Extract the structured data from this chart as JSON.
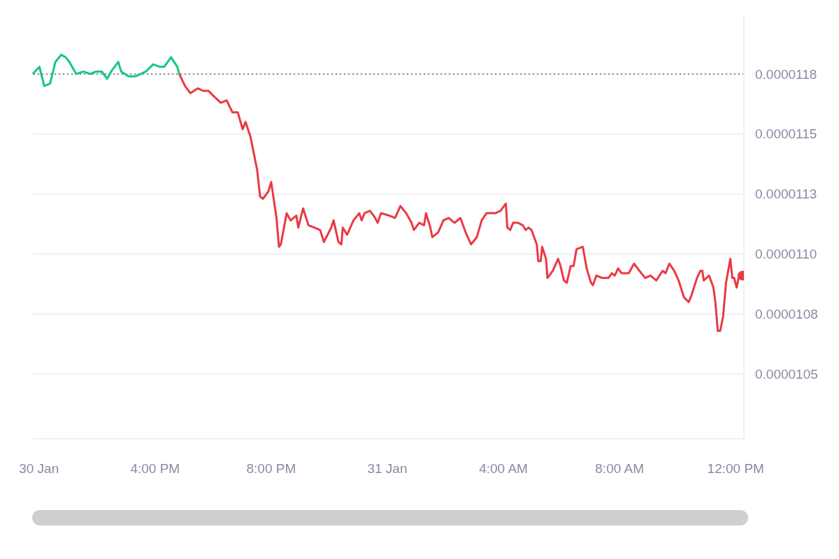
{
  "chart_data": {
    "type": "line",
    "xlim": [
      "--01-30T11:46",
      "--01-31T12:17"
    ],
    "xticks": [
      {
        "value": "--01-30T12:00",
        "label": "30 Jan"
      },
      {
        "value": "--01-30T16:00",
        "label": "4:00 PM"
      },
      {
        "value": "--01-30T20:00",
        "label": "8:00 PM"
      },
      {
        "value": "--01-31T00:00",
        "label": "31 Jan"
      },
      {
        "value": "--01-31T04:00",
        "label": "4:00 AM"
      },
      {
        "value": "--01-31T08:00",
        "label": "8:00 AM"
      },
      {
        "value": "--01-31T12:00",
        "label": "12:00 PM"
      }
    ],
    "ylim": [
      1.028e-05,
      1.205e-05
    ],
    "yticks": [
      {
        "value": 1.18e-05,
        "label": "0.0000118"
      },
      {
        "value": 1.155e-05,
        "label": "0.0000115"
      },
      {
        "value": 1.13e-05,
        "label": "0.0000113"
      },
      {
        "value": 1.105e-05,
        "label": "0.0000110"
      },
      {
        "value": 1.08e-05,
        "label": "0.0000108"
      },
      {
        "value": 1.055e-05,
        "label": "0.0000105"
      }
    ],
    "grid": "y",
    "line_style": "solid",
    "ref_lines": [
      {
        "axis": "y",
        "value": 1.18e-05,
        "color": "#858ca2",
        "line_style": "dotted"
      }
    ],
    "series": [
      {
        "color": "#16c784",
        "x": [
          "--01-30T11:47",
          "--01-30T12:01",
          "--01-30T12:11",
          "--01-30T12:23",
          "--01-30T12:34",
          "--01-30T12:46",
          "--01-30T12:55",
          "--01-30T13:03",
          "--01-30T13:17",
          "--01-30T13:32",
          "--01-30T13:46",
          "--01-30T13:58",
          "--01-30T14:10",
          "--01-30T14:21",
          "--01-30T14:29",
          "--01-30T14:44",
          "--01-30T14:50",
          "--01-30T15:05",
          "--01-30T15:19",
          "--01-30T15:30",
          "--01-30T15:41",
          "--01-30T15:56",
          "--01-30T16:10",
          "--01-30T16:19",
          "--01-30T16:33",
          "--01-30T16:46",
          "--01-30T16:50"
        ],
        "values": [
          1.18e-05,
          1.183e-05,
          1.175e-05,
          1.176e-05,
          1.185e-05,
          1.188e-05,
          1.187e-05,
          1.185e-05,
          1.18e-05,
          1.181e-05,
          1.18e-05,
          1.181e-05,
          1.181e-05,
          1.178e-05,
          1.181e-05,
          1.185e-05,
          1.181e-05,
          1.179e-05,
          1.179e-05,
          1.18e-05,
          1.181e-05,
          1.184e-05,
          1.183e-05,
          1.183e-05,
          1.187e-05,
          1.183e-05,
          1.18e-05
        ]
      },
      {
        "color": "#ea3943",
        "x": [
          "--01-30T16:50",
          "--01-30T17:02",
          "--01-30T17:13",
          "--01-30T17:28",
          "--01-30T17:39",
          "--01-30T17:50",
          "--01-30T18:05",
          "--01-30T18:16",
          "--01-30T18:28",
          "--01-30T18:40",
          "--01-30T18:51",
          "--01-30T19:01",
          "--01-30T19:07",
          "--01-30T19:17",
          "--01-30T19:25",
          "--01-30T19:31",
          "--01-30T19:37",
          "--01-30T19:43",
          "--01-30T19:54",
          "--01-30T20:00",
          "--01-30T20:11",
          "--01-30T20:16",
          "--01-30T20:20",
          "--01-30T20:32",
          "--01-30T20:40",
          "--01-30T20:52",
          "--01-30T20:56",
          "--01-30T21:06",
          "--01-30T21:17",
          "--01-30T21:29",
          "--01-30T21:41",
          "--01-30T21:49",
          "--01-30T22:04",
          "--01-30T22:09",
          "--01-30T22:19",
          "--01-30T22:25",
          "--01-30T22:28",
          "--01-30T22:37",
          "--01-30T22:50",
          "--01-30T23:02",
          "--01-30T23:07",
          "--01-30T23:13",
          "--01-30T23:24",
          "--01-30T23:35",
          "--01-30T23:40",
          "--01-30T23:47",
          "--01-31T00:04",
          "--01-31T00:16",
          "--01-31T00:27",
          "--01-31T00:39",
          "--01-31T00:50",
          "--01-31T00:55",
          "--01-31T01:06",
          "--01-31T01:16",
          "--01-31T01:20",
          "--01-31T01:29",
          "--01-31T01:33",
          "--01-31T01:45",
          "--01-31T01:56",
          "--01-31T02:07",
          "--01-31T02:19",
          "--01-31T02:31",
          "--01-31T02:42",
          "--01-31T02:53",
          "--01-31T03:05",
          "--01-31T03:15",
          "--01-31T03:25",
          "--01-31T03:43",
          "--01-31T03:54",
          "--01-31T04:05",
          "--01-31T04:08",
          "--01-31T04:14",
          "--01-31T04:20",
          "--01-31T04:30",
          "--01-31T04:40",
          "--01-31T04:46",
          "--01-31T04:52",
          "--01-31T04:58",
          "--01-31T05:09",
          "--01-31T05:12",
          "--01-31T05:17",
          "--01-31T05:20",
          "--01-31T05:28",
          "--01-31T05:31",
          "--01-31T05:42",
          "--01-31T05:53",
          "--01-31T05:58",
          "--01-31T06:05",
          "--01-31T06:11",
          "--01-31T06:19",
          "--01-31T06:25",
          "--01-31T06:31",
          "--01-31T06:44",
          "--01-31T06:52",
          "--01-31T07:01",
          "--01-31T07:05",
          "--01-31T07:12",
          "--01-31T07:24",
          "--01-31T07:37",
          "--01-31T07:44",
          "--01-31T07:50",
          "--01-31T07:57",
          "--01-31T08:04",
          "--01-31T08:19",
          "--01-31T08:30",
          "--01-31T08:41",
          "--01-31T08:53",
          "--01-31T09:04",
          "--01-31T09:16",
          "--01-31T09:29",
          "--01-31T09:35",
          "--01-31T09:43",
          "--01-31T09:53",
          "--01-31T10:02",
          "--01-31T10:13",
          "--01-31T10:23",
          "--01-31T10:29",
          "--01-31T10:40",
          "--01-31T10:47",
          "--01-31T10:51",
          "--01-31T10:54",
          "--01-31T11:05",
          "--01-31T11:14",
          "--01-31T11:18",
          "--01-31T11:23",
          "--01-31T11:28",
          "--01-31T11:34",
          "--01-31T11:40",
          "--01-31T11:49",
          "--01-31T11:53",
          "--01-31T11:57",
          "--01-31T12:02",
          "--01-31T12:07",
          "--01-31T12:14"
        ],
        "values": [
          1.18e-05,
          1.175e-05,
          1.172e-05,
          1.174e-05,
          1.173e-05,
          1.173e-05,
          1.17e-05,
          1.168e-05,
          1.169e-05,
          1.164e-05,
          1.164e-05,
          1.157e-05,
          1.16e-05,
          1.154e-05,
          1.146e-05,
          1.14e-05,
          1.129e-05,
          1.128e-05,
          1.131e-05,
          1.135e-05,
          1.12e-05,
          1.108e-05,
          1.109e-05,
          1.122e-05,
          1.119e-05,
          1.121e-05,
          1.116e-05,
          1.124e-05,
          1.117e-05,
          1.116e-05,
          1.115e-05,
          1.11e-05,
          1.116e-05,
          1.119e-05,
          1.11e-05,
          1.109e-05,
          1.116e-05,
          1.113e-05,
          1.119e-05,
          1.122e-05,
          1.119e-05,
          1.122e-05,
          1.123e-05,
          1.12e-05,
          1.118e-05,
          1.122e-05,
          1.121e-05,
          1.12e-05,
          1.125e-05,
          1.122e-05,
          1.118e-05,
          1.115e-05,
          1.118e-05,
          1.117e-05,
          1.122e-05,
          1.116e-05,
          1.112e-05,
          1.114e-05,
          1.119e-05,
          1.12e-05,
          1.118e-05,
          1.12e-05,
          1.114e-05,
          1.109e-05,
          1.112e-05,
          1.119e-05,
          1.122e-05,
          1.122e-05,
          1.123e-05,
          1.126e-05,
          1.116e-05,
          1.115e-05,
          1.118e-05,
          1.118e-05,
          1.117e-05,
          1.115e-05,
          1.116e-05,
          1.115e-05,
          1.109e-05,
          1.102e-05,
          1.102e-05,
          1.108e-05,
          1.103e-05,
          1.095e-05,
          1.098e-05,
          1.103e-05,
          1.1e-05,
          1.094e-05,
          1.093e-05,
          1.1e-05,
          1.1e-05,
          1.107e-05,
          1.108e-05,
          1.099e-05,
          1.093e-05,
          1.092e-05,
          1.096e-05,
          1.095e-05,
          1.095e-05,
          1.097e-05,
          1.096e-05,
          1.099e-05,
          1.097e-05,
          1.097e-05,
          1.101e-05,
          1.098e-05,
          1.095e-05,
          1.096e-05,
          1.094e-05,
          1.098e-05,
          1.097e-05,
          1.101e-05,
          1.098e-05,
          1.094e-05,
          1.087e-05,
          1.085e-05,
          1.088e-05,
          1.095e-05,
          1.098e-05,
          1.098e-05,
          1.094e-05,
          1.096e-05,
          1.091e-05,
          1.085e-05,
          1.073e-05,
          1.073e-05,
          1.079e-05,
          1.093e-05,
          1.103e-05,
          1.095e-05,
          1.095e-05,
          1.091e-05,
          1.096e-05,
          1.096e-05
        ]
      },
      {
        "type": "scatter",
        "color": "#ea3943",
        "marker": "circle",
        "x": [
          "--01-31T12:14"
        ],
        "values": [
          1.096e-05
        ]
      }
    ]
  }
}
